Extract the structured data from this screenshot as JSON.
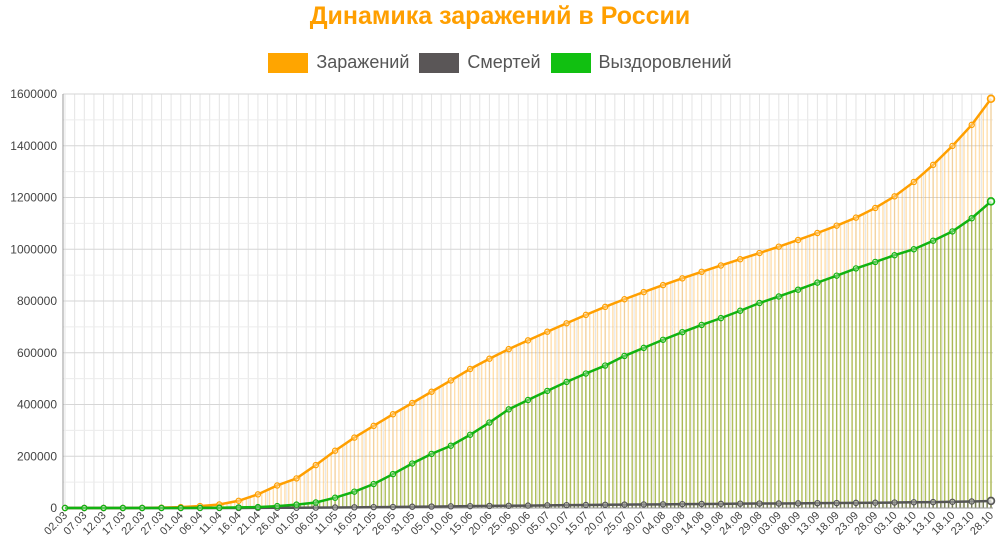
{
  "chart_data": {
    "type": "line",
    "title": "Динамика заражений в России",
    "legend_position": "top",
    "grid": true,
    "ylim": [
      0,
      1600000
    ],
    "yticks": [
      0,
      200000,
      400000,
      600000,
      800000,
      1000000,
      1200000,
      1400000,
      1600000
    ],
    "x_tick_labels": [
      "02.03",
      "07.03",
      "12.03",
      "17.03",
      "22.03",
      "27.03",
      "01.04",
      "06.04",
      "11.04",
      "16.04",
      "21.04",
      "26.04",
      "01.05",
      "06.05",
      "11.05",
      "16.05",
      "21.05",
      "26.05",
      "31.05",
      "05.06",
      "10.06",
      "15.06",
      "20.06",
      "25.06",
      "30.06",
      "05.07",
      "10.07",
      "15.07",
      "20.07",
      "25.07",
      "30.07",
      "04.08",
      "09.08",
      "14.08",
      "19.08",
      "24.08",
      "29.08",
      "03.09",
      "08.09",
      "13.09",
      "18.09",
      "23.09",
      "28.09",
      "03.10",
      "08.10",
      "13.10",
      "18.10",
      "23.10",
      "28.10"
    ],
    "series": [
      {
        "name": "Заражений",
        "color": "#ff9f00",
        "values": [
          3,
          13,
          28,
          93,
          306,
          1264,
          3548,
          7497,
          13584,
          27938,
          52763,
          87147,
          114431,
          165929,
          221344,
          272043,
          317554,
          362342,
          405843,
          449256,
          493023,
          537210,
          576952,
          613994,
          647849,
          681251,
          713936,
          746369,
          777486,
          806720,
          834499,
          861423,
          887536,
          912823,
          937321,
          961493,
          985346,
          1009995,
          1035789,
          1062811,
          1091186,
          1122241,
          1159573,
          1204502,
          1260112,
          1326178,
          1399334,
          1480646,
          1581693
        ]
      },
      {
        "name": "Смертей",
        "color": "#5a5657",
        "values": [
          0,
          0,
          0,
          0,
          0,
          2,
          30,
          58,
          106,
          232,
          456,
          794,
          1169,
          1625,
          2116,
          2631,
          3249,
          3807,
          4855,
          5528,
          6358,
          7091,
          7992,
          8605,
          9306,
          10296,
          11017,
          11614,
          12342,
          13026,
          13673,
          14207,
          14903,
          15467,
          16004,
          16683,
          17176,
          17414,
          17993,
          18635,
          19128,
          19799,
          20385,
          21077,
          22056,
          22722,
          24002,
          25242,
          27301
        ]
      },
      {
        "name": "Выздоровлений",
        "color": "#00bb00",
        "values": [
          0,
          0,
          0,
          5,
          17,
          49,
          235,
          494,
          1045,
          2304,
          3446,
          7346,
          13220,
          21327,
          39801,
          63166,
          92681,
          131129,
          171883,
          209028,
          240669,
          282985,
          330230,
          381220,
          417440,
          452480,
          487436,
          519710,
          550510,
          587703,
          618920,
          650173,
          679529,
          707492,
          733785,
          762298,
          792235,
          817542,
          843709,
          871000,
          898000,
          926000,
          951000,
          977000,
          1000000,
          1033000,
          1069000,
          1120000,
          1185000
        ]
      }
    ]
  }
}
